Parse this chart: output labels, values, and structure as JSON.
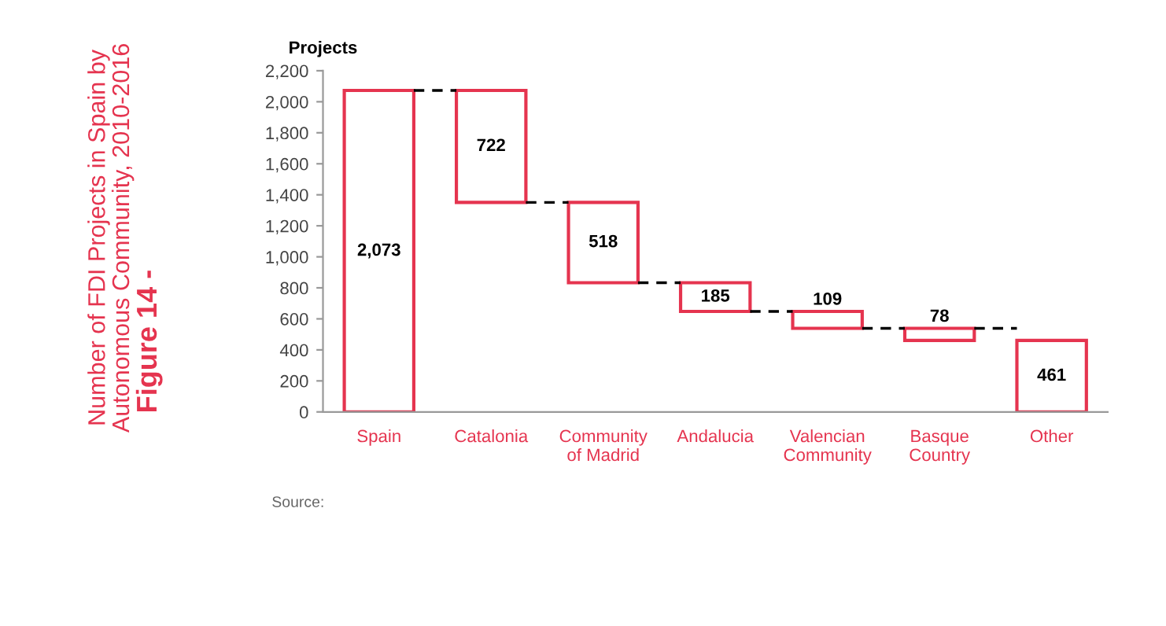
{
  "chart_data": {
    "type": "bar",
    "title": "Figure 14 -",
    "subtitle": "Number of FDI Projects in Spain by\nAutonomous Community, 2010-2016",
    "ylabel": "Projects",
    "annotations": [
      "Source:"
    ],
    "categories": [
      "Spain",
      "Catalonia",
      "Community\nof Madrid",
      "Andalucia",
      "Valencian\nCommunity",
      "Basque\nCountry",
      "Other"
    ],
    "values": [
      2073,
      722,
      518,
      185,
      109,
      78,
      461
    ],
    "base": [
      0,
      1351,
      833,
      648,
      539,
      461,
      0
    ],
    "color": "#e5344f",
    "value_labels": [
      "2,073",
      "722",
      "518",
      "185",
      "109",
      "78",
      "461"
    ],
    "ylim": [
      0,
      2200
    ],
    "yticks": [
      {
        "value": 0,
        "label": "0"
      },
      {
        "value": 200,
        "label": "200"
      },
      {
        "value": 400,
        "label": "400"
      },
      {
        "value": 600,
        "label": "600"
      },
      {
        "value": 800,
        "label": "800"
      },
      {
        "value": 1000,
        "label": "1,000"
      },
      {
        "value": 1200,
        "label": "1,200"
      },
      {
        "value": 1400,
        "label": "1,400"
      },
      {
        "value": 1600,
        "label": "1,600"
      },
      {
        "value": 1800,
        "label": "1,800"
      },
      {
        "value": 2000,
        "label": "2,000"
      },
      {
        "value": 2200,
        "label": "2,200"
      }
    ],
    "grid": false
  }
}
